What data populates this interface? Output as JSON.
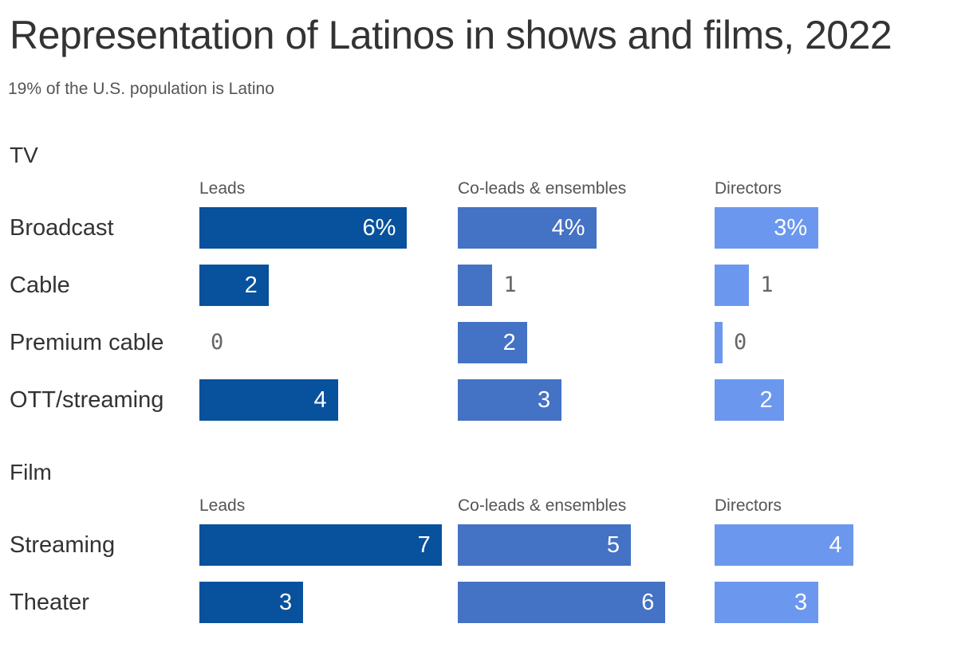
{
  "title": "Representation of Latinos in shows and films, 2022",
  "subtitle": "19% of the U.S. population is Latino",
  "colors": {
    "leads": "#08519c",
    "coleads": "#4472c4",
    "directors": "#6b98ee"
  },
  "chart_data": {
    "type": "bar",
    "unit": "%",
    "columns": [
      "Leads",
      "Co-leads & ensembles",
      "Directors"
    ],
    "groups": [
      {
        "name": "TV",
        "categories": [
          "Broadcast",
          "Cable",
          "Premium cable",
          "OTT/streaming"
        ],
        "series": [
          {
            "name": "Leads",
            "values": [
              6,
              2,
              0,
              4
            ]
          },
          {
            "name": "Co-leads & ensembles",
            "values": [
              4,
              1,
              2,
              3
            ]
          },
          {
            "name": "Directors",
            "values": [
              3,
              1,
              0,
              2
            ]
          }
        ]
      },
      {
        "name": "Film",
        "categories": [
          "Streaming",
          "Theater"
        ],
        "series": [
          {
            "name": "Leads",
            "values": [
              7,
              3
            ]
          },
          {
            "name": "Co-leads & ensembles",
            "values": [
              5,
              6
            ]
          },
          {
            "name": "Directors",
            "values": [
              4,
              3
            ]
          }
        ]
      }
    ]
  }
}
